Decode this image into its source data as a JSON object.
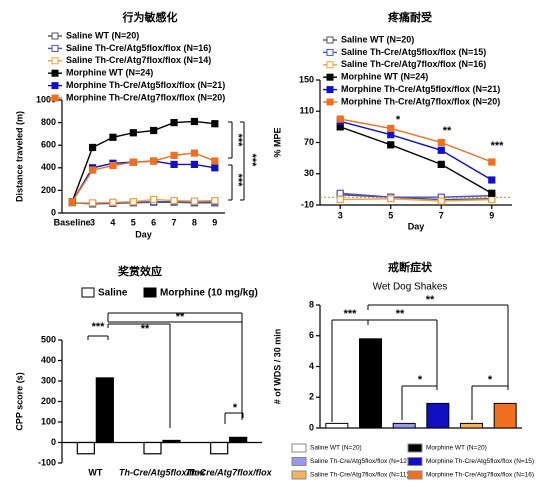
{
  "chart_data": [
    {
      "type": "line",
      "title": "行为敏感化",
      "xlabel": "Day",
      "ylabel": "Distance traveled (m)",
      "categories": [
        "Baseline",
        "3",
        "4",
        "5",
        "6",
        "7",
        "8",
        "9"
      ],
      "ylim": [
        0,
        1000
      ],
      "yticks": [
        0,
        200,
        400,
        600,
        800,
        1000
      ],
      "series": [
        {
          "name": "Saline WT (N=20)",
          "color": "#555555",
          "filled": false,
          "values": [
            90,
            80,
            85,
            90,
            95,
            95,
            90,
            90
          ]
        },
        {
          "name": "Saline Th-Cre/Atg5flox/flox (N=16)",
          "color": "#5050c0",
          "filled": false,
          "values": [
            90,
            85,
            90,
            95,
            100,
            100,
            95,
            100
          ]
        },
        {
          "name": "Saline Th-Cre/Atg7flox/flox (N=14)",
          "color": "#f0a040",
          "filled": false,
          "values": [
            90,
            90,
            95,
            100,
            120,
            110,
            105,
            110
          ]
        },
        {
          "name": "Morphine WT (N=24)",
          "color": "#000000",
          "filled": true,
          "values": [
            100,
            580,
            670,
            710,
            730,
            800,
            810,
            790
          ]
        },
        {
          "name": "Morphine Th-Cre/Atg5flox/flox (N=21)",
          "color": "#1010c8",
          "filled": true,
          "values": [
            100,
            400,
            440,
            450,
            460,
            430,
            430,
            400
          ]
        },
        {
          "name": "Morphine Th-Cre/Atg7flox/flox (N=20)",
          "color": "#f07020",
          "filled": true,
          "values": [
            100,
            380,
            420,
            450,
            460,
            510,
            530,
            460
          ]
        }
      ],
      "annotations": [
        "***",
        "***",
        "***"
      ]
    },
    {
      "type": "line",
      "title": "疼痛耐受",
      "xlabel": "Day",
      "ylabel": "% MPE",
      "x": [
        3,
        5,
        7,
        9
      ],
      "xlim": [
        2.2,
        9.8
      ],
      "xticks": [
        3,
        5,
        7,
        9
      ],
      "ylim": [
        -10,
        150
      ],
      "yticks": [
        -10,
        30,
        70,
        110,
        150
      ],
      "series": [
        {
          "name": "Saline WT (N=20)",
          "color": "#555555",
          "filled": false,
          "values": [
            3,
            0,
            -3,
            -2
          ]
        },
        {
          "name": "Saline Th-Cre/Atg5flox/flox (N=15)",
          "color": "#5050c0",
          "filled": false,
          "values": [
            5,
            0,
            0,
            2
          ]
        },
        {
          "name": "Saline Th-Cre/Atg7flox/flox (N=16)",
          "color": "#f0a040",
          "filled": false,
          "values": [
            -3,
            -2,
            -5,
            -3
          ]
        },
        {
          "name": "Morphine WT (N=24)",
          "color": "#000000",
          "filled": true,
          "values": [
            90,
            67,
            42,
            5
          ]
        },
        {
          "name": "Morphine Th-Cre/Atg5flox/flox (N=21)",
          "color": "#1010c8",
          "filled": true,
          "values": [
            97,
            80,
            60,
            22
          ]
        },
        {
          "name": "Morphine Th-Cre/Atg7flox/flox (N=20)",
          "color": "#f07020",
          "filled": true,
          "values": [
            100,
            88,
            70,
            45
          ]
        }
      ],
      "annotations": [
        "*",
        "**",
        "***"
      ]
    },
    {
      "type": "bar",
      "title": "奖赏效应",
      "ylabel": "CPP score (s)",
      "categories": [
        "WT",
        "Th-Cre/Atg5flox/flox",
        "Th-Cre/Atg7flox/flox"
      ],
      "ylim": [
        -100,
        500
      ],
      "yticks": [
        -100,
        0,
        100,
        200,
        300,
        400,
        500
      ],
      "series": [
        {
          "name": "Saline",
          "color": "#ffffff",
          "values": [
            -55,
            -55,
            -55
          ]
        },
        {
          "name": "Morphine (10 mg/kg)",
          "color": "#000000",
          "values": [
            315,
            10,
            25
          ]
        }
      ],
      "annotations": [
        "***",
        "**",
        "**",
        "*"
      ]
    },
    {
      "type": "bar",
      "title": "戒断症状",
      "subtitle": "Wet Dog Shakes",
      "ylabel": "# of WDS / 30 min",
      "ylim": [
        0,
        8
      ],
      "yticks": [
        0,
        2,
        4,
        6,
        8
      ],
      "series": [
        {
          "name": "Saline WT (N=20)",
          "color": "#ffffff",
          "values": [
            0.3
          ]
        },
        {
          "name": "Morphine WT (N=20)",
          "color": "#000000",
          "values": [
            5.8
          ]
        },
        {
          "name": "Saline Th-Cre/Atg5flox/flox (N=12)",
          "color": "#9999ee",
          "values": [
            0.3
          ]
        },
        {
          "name": "Morphine Th-Cre/Atg5flox/flox (N=15)",
          "color": "#1010c0",
          "values": [
            1.6
          ]
        },
        {
          "name": "Saline Th-Cre/Atg7flox/flox (N=11)",
          "color": "#f5b060",
          "values": [
            0.3
          ]
        },
        {
          "name": "Morphine Th-Cre/Atg7flox/flox (N=16)",
          "color": "#f07020",
          "values": [
            1.6
          ]
        }
      ],
      "annotations": [
        "***",
        "**",
        "**",
        "*",
        "*"
      ]
    }
  ]
}
